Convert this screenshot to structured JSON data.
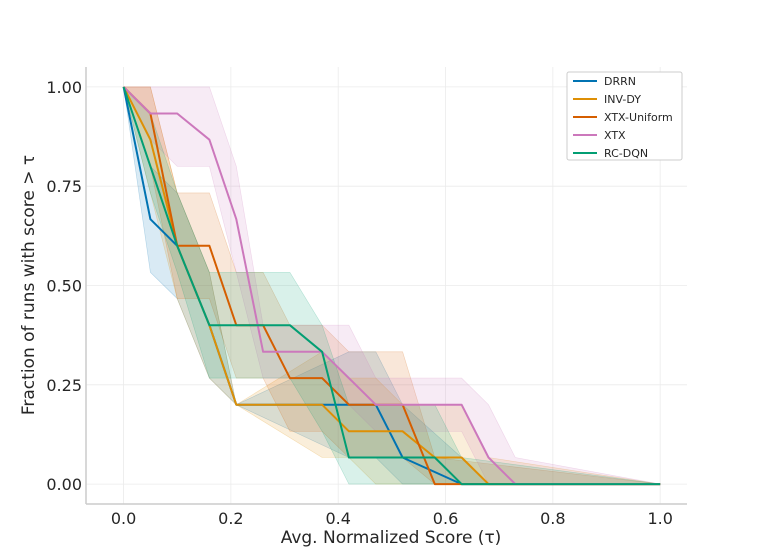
{
  "chart_data": {
    "type": "line",
    "title": "",
    "xlabel": "Avg. Normalized Score (τ)",
    "ylabel": "Fraction of runs with score > τ",
    "xlim": [
      -0.07,
      1.05
    ],
    "ylim": [
      -0.05,
      1.05
    ],
    "xticks": [
      0.0,
      0.2,
      0.4,
      0.6,
      0.8,
      1.0
    ],
    "yticks": [
      0.0,
      0.25,
      0.5,
      0.75,
      1.0
    ],
    "xtick_labels": [
      "0.0",
      "0.2",
      "0.4",
      "0.6",
      "0.8",
      "1.0"
    ],
    "ytick_labels": [
      "0.00",
      "0.25",
      "0.50",
      "0.75",
      "1.00"
    ],
    "grid": true,
    "legend_position": "top-right",
    "series": [
      {
        "name": "DRRN",
        "color": "#0173b2",
        "x": [
          0.0,
          0.05,
          0.1,
          0.16,
          0.21,
          0.42,
          0.47,
          0.52,
          0.63,
          0.68,
          1.0
        ],
        "y": [
          1.0,
          0.667,
          0.6,
          0.4,
          0.2,
          0.2,
          0.2,
          0.067,
          0.0,
          0.0,
          0.0
        ],
        "lower": [
          1.0,
          0.533,
          0.467,
          0.267,
          0.2,
          0.067,
          0.067,
          0.0,
          0.0,
          0.0,
          0.0
        ],
        "upper": [
          1.0,
          0.8,
          0.733,
          0.533,
          0.2,
          0.333,
          0.333,
          0.2,
          0.067,
          0.0,
          0.0
        ]
      },
      {
        "name": "INV-DY",
        "color": "#de8f05",
        "x": [
          0.0,
          0.05,
          0.1,
          0.16,
          0.21,
          0.37,
          0.42,
          0.47,
          0.52,
          0.58,
          0.63,
          0.68,
          1.0
        ],
        "y": [
          1.0,
          0.867,
          0.6,
          0.4,
          0.2,
          0.2,
          0.133,
          0.133,
          0.133,
          0.067,
          0.067,
          0.0,
          0.0
        ],
        "lower": [
          1.0,
          0.733,
          0.467,
          0.267,
          0.2,
          0.067,
          0.067,
          0.0,
          0.0,
          0.0,
          0.0,
          0.0,
          0.0
        ],
        "upper": [
          1.0,
          1.0,
          0.733,
          0.533,
          0.2,
          0.333,
          0.267,
          0.267,
          0.2,
          0.2,
          0.2,
          0.067,
          0.0
        ]
      },
      {
        "name": "XTX-Uniform",
        "color": "#d55e00",
        "x": [
          0.0,
          0.05,
          0.1,
          0.16,
          0.21,
          0.26,
          0.31,
          0.37,
          0.42,
          0.47,
          0.52,
          0.58,
          1.0
        ],
        "y": [
          1.0,
          0.933,
          0.6,
          0.6,
          0.4,
          0.4,
          0.267,
          0.267,
          0.2,
          0.2,
          0.2,
          0.0,
          0.0
        ],
        "lower": [
          1.0,
          0.8,
          0.467,
          0.467,
          0.267,
          0.267,
          0.133,
          0.133,
          0.067,
          0.067,
          0.067,
          0.0,
          0.0
        ],
        "upper": [
          1.0,
          1.0,
          0.733,
          0.733,
          0.533,
          0.533,
          0.4,
          0.4,
          0.333,
          0.333,
          0.333,
          0.067,
          0.0
        ]
      },
      {
        "name": "XTX",
        "color": "#cc78bc",
        "x": [
          0.0,
          0.05,
          0.1,
          0.16,
          0.21,
          0.26,
          0.31,
          0.37,
          0.42,
          0.47,
          0.52,
          0.58,
          0.63,
          0.68,
          0.73,
          1.0
        ],
        "y": [
          1.0,
          0.933,
          0.933,
          0.867,
          0.667,
          0.333,
          0.333,
          0.333,
          0.267,
          0.2,
          0.2,
          0.2,
          0.2,
          0.067,
          0.0,
          0.0
        ],
        "lower": [
          1.0,
          0.867,
          0.8,
          0.8,
          0.533,
          0.267,
          0.267,
          0.267,
          0.2,
          0.133,
          0.133,
          0.133,
          0.133,
          0.0,
          0.0,
          0.0
        ],
        "upper": [
          1.0,
          1.0,
          1.0,
          1.0,
          0.8,
          0.4,
          0.4,
          0.4,
          0.4,
          0.267,
          0.267,
          0.267,
          0.267,
          0.2,
          0.067,
          0.0
        ]
      },
      {
        "name": "RC-DQN",
        "color": "#029e73",
        "x": [
          0.0,
          0.05,
          0.1,
          0.16,
          0.21,
          0.26,
          0.31,
          0.37,
          0.42,
          0.47,
          0.52,
          0.58,
          0.63,
          1.0
        ],
        "y": [
          1.0,
          0.8,
          0.6,
          0.4,
          0.4,
          0.4,
          0.4,
          0.333,
          0.067,
          0.067,
          0.067,
          0.067,
          0.0,
          0.0
        ],
        "lower": [
          1.0,
          0.733,
          0.533,
          0.267,
          0.267,
          0.267,
          0.267,
          0.133,
          0.0,
          0.0,
          0.0,
          0.0,
          0.0,
          0.0
        ],
        "upper": [
          1.0,
          0.933,
          0.733,
          0.533,
          0.533,
          0.533,
          0.533,
          0.4,
          0.2,
          0.2,
          0.2,
          0.2,
          0.067,
          0.0
        ]
      }
    ]
  }
}
